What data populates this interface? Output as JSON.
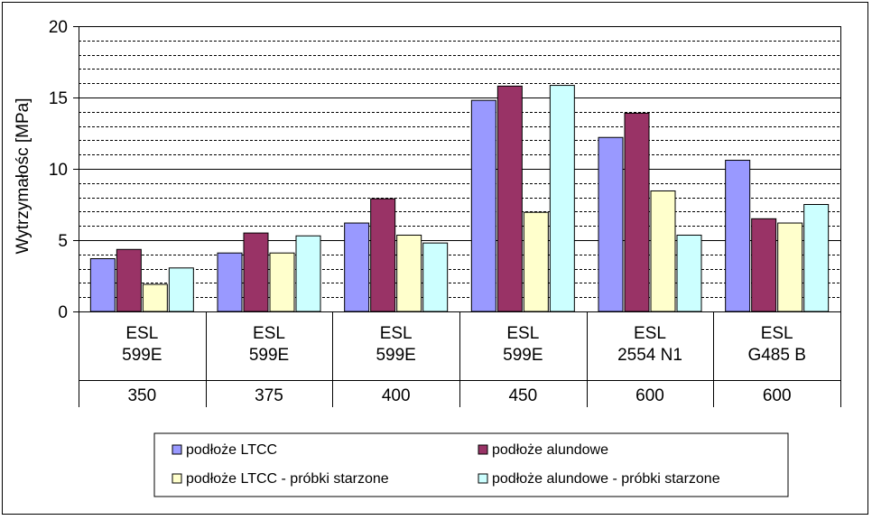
{
  "chart_data": {
    "type": "bar",
    "ylabel": "Wytrzymałośc [MPa]",
    "ylim": [
      0,
      20
    ],
    "yticks": [
      0,
      5,
      10,
      15,
      20
    ],
    "minor_grid_step": 1,
    "grid": true,
    "legend_position": "bottom",
    "categories": [
      {
        "line1": "ESL",
        "line2": "599E",
        "line3": "350"
      },
      {
        "line1": "ESL",
        "line2": "599E",
        "line3": "375"
      },
      {
        "line1": "ESL",
        "line2": "599E",
        "line3": "400"
      },
      {
        "line1": "ESL",
        "line2": "599E",
        "line3": "450"
      },
      {
        "line1": "ESL",
        "line2": "2554 N1",
        "line3": "600"
      },
      {
        "line1": "ESL",
        "line2": "G485 B",
        "line3": "600"
      }
    ],
    "series": [
      {
        "name": "podłoże LTCC",
        "color": "#9999ff",
        "values": [
          3.7,
          4.1,
          6.2,
          14.8,
          12.2,
          10.6
        ]
      },
      {
        "name": "podłoże alundowe",
        "color": "#993366",
        "values": [
          4.35,
          5.5,
          7.9,
          15.8,
          13.9,
          6.5
        ]
      },
      {
        "name": "podłoże LTCC - próbki starzone",
        "color": "#ffffcc",
        "values": [
          1.9,
          4.1,
          5.35,
          6.95,
          8.45,
          6.2
        ]
      },
      {
        "name": "podłoże alundowe - próbki starzone",
        "color": "#ccffff",
        "values": [
          3.05,
          5.3,
          4.8,
          15.85,
          5.35,
          7.5
        ]
      }
    ]
  }
}
